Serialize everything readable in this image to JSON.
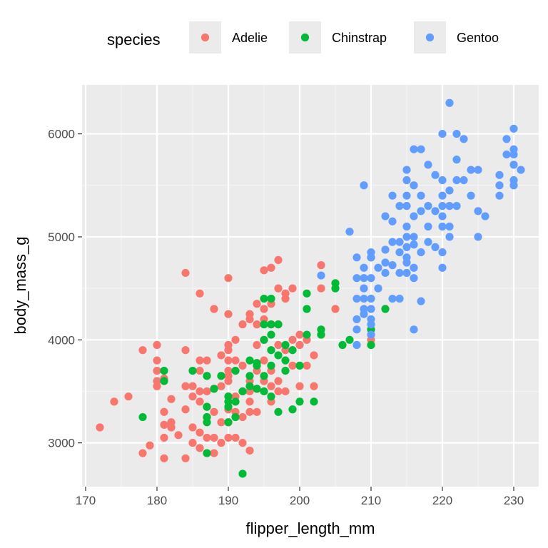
{
  "chart_data": {
    "type": "scatter",
    "xlabel": "flipper_length_mm",
    "ylabel": "body_mass_g",
    "xlim": [
      169.5,
      233.5
    ],
    "ylim": [
      2575,
      6475
    ],
    "x_ticks": [
      170,
      180,
      190,
      200,
      210,
      220,
      230
    ],
    "y_ticks": [
      3000,
      4000,
      5000,
      6000
    ],
    "x_tick_labels": [
      "170",
      "180",
      "190",
      "200",
      "210",
      "220",
      "230"
    ],
    "y_tick_labels": [
      "3000",
      "4000",
      "5000",
      "6000"
    ],
    "grid": true,
    "legend": {
      "title": "species",
      "position": "top",
      "entries": [
        "Adelie",
        "Chinstrap",
        "Gentoo"
      ]
    },
    "series": [
      {
        "name": "Adelie",
        "color": "#F8766D",
        "points": [
          [
            172,
            3150
          ],
          [
            174,
            3400
          ],
          [
            176,
            3450
          ],
          [
            178,
            3900
          ],
          [
            178,
            2900
          ],
          [
            179,
            2975
          ],
          [
            180,
            3950
          ],
          [
            180,
            3800
          ],
          [
            180,
            3600
          ],
          [
            180,
            3550
          ],
          [
            180,
            3700
          ],
          [
            181,
            3625
          ],
          [
            181,
            3300
          ],
          [
            181,
            3175
          ],
          [
            181,
            3050
          ],
          [
            181,
            2850
          ],
          [
            182,
            3425
          ],
          [
            182,
            3200
          ],
          [
            182,
            3150
          ],
          [
            183,
            3075
          ],
          [
            184,
            4650
          ],
          [
            184,
            3900
          ],
          [
            184,
            3550
          ],
          [
            184,
            3325
          ],
          [
            184,
            2850
          ],
          [
            185,
            3550
          ],
          [
            185,
            3450
          ],
          [
            185,
            3150
          ],
          [
            185,
            3000
          ],
          [
            186,
            4450
          ],
          [
            186,
            3800
          ],
          [
            186,
            3700
          ],
          [
            186,
            3500
          ],
          [
            186,
            3400
          ],
          [
            186,
            3100
          ],
          [
            186,
            2950
          ],
          [
            187,
            3800
          ],
          [
            187,
            3650
          ],
          [
            187,
            3500
          ],
          [
            187,
            3350
          ],
          [
            187,
            3250
          ],
          [
            187,
            3050
          ],
          [
            187,
            2900
          ],
          [
            188,
            4300
          ],
          [
            188,
            3525
          ],
          [
            188,
            3300
          ],
          [
            188,
            3050
          ],
          [
            188,
            2900
          ],
          [
            189,
            3850
          ],
          [
            189,
            3650
          ],
          [
            189,
            3550
          ],
          [
            189,
            3200
          ],
          [
            189,
            3000
          ],
          [
            190,
            4600
          ],
          [
            190,
            4250
          ],
          [
            190,
            3950
          ],
          [
            190,
            3900
          ],
          [
            190,
            3800
          ],
          [
            190,
            3700
          ],
          [
            190,
            3650
          ],
          [
            190,
            3600
          ],
          [
            190,
            3450
          ],
          [
            190,
            3325
          ],
          [
            190,
            3200
          ],
          [
            190,
            3050
          ],
          [
            191,
            4000
          ],
          [
            191,
            3800
          ],
          [
            191,
            3700
          ],
          [
            191,
            3450
          ],
          [
            191,
            3300
          ],
          [
            191,
            3050
          ],
          [
            192,
            4150
          ],
          [
            192,
            3750
          ],
          [
            192,
            3500
          ],
          [
            192,
            3250
          ],
          [
            192,
            3000
          ],
          [
            193,
            4250
          ],
          [
            193,
            4200
          ],
          [
            193,
            3600
          ],
          [
            193,
            3500
          ],
          [
            193,
            3400
          ],
          [
            193,
            3300
          ],
          [
            193,
            2925
          ],
          [
            194,
            4350
          ],
          [
            194,
            4150
          ],
          [
            194,
            3950
          ],
          [
            194,
            3700
          ],
          [
            194,
            3525
          ],
          [
            194,
            3300
          ],
          [
            195,
            4675
          ],
          [
            195,
            4300
          ],
          [
            195,
            4200
          ],
          [
            195,
            4000
          ],
          [
            195,
            3800
          ],
          [
            195,
            3600
          ],
          [
            196,
            4700
          ],
          [
            196,
            4350
          ],
          [
            196,
            4150
          ],
          [
            196,
            3700
          ],
          [
            196,
            3550
          ],
          [
            196,
            3400
          ],
          [
            197,
            4775
          ],
          [
            197,
            4500
          ],
          [
            197,
            4150
          ],
          [
            197,
            3950
          ],
          [
            197,
            3600
          ],
          [
            197,
            3500
          ],
          [
            198,
            4450
          ],
          [
            198,
            4400
          ],
          [
            198,
            3900
          ],
          [
            198,
            3500
          ],
          [
            199,
            4500
          ],
          [
            199,
            4000
          ],
          [
            199,
            3750
          ],
          [
            200,
            4050
          ],
          [
            200,
            3950
          ],
          [
            200,
            3550
          ],
          [
            201,
            4000
          ],
          [
            201,
            3750
          ],
          [
            202,
            3850
          ],
          [
            202,
            3550
          ],
          [
            203,
            4725
          ],
          [
            203,
            4500
          ],
          [
            205,
            4300
          ],
          [
            210,
            4000
          ]
        ]
      },
      {
        "name": "Chinstrap",
        "color": "#00BA38",
        "points": [
          [
            178,
            3250
          ],
          [
            181,
            3700
          ],
          [
            181,
            3600
          ],
          [
            185,
            3700
          ],
          [
            187,
            3650
          ],
          [
            187,
            3350
          ],
          [
            187,
            3250
          ],
          [
            187,
            3200
          ],
          [
            187,
            2900
          ],
          [
            188,
            3525
          ],
          [
            189,
            3650
          ],
          [
            190,
            3450
          ],
          [
            190,
            3400
          ],
          [
            190,
            3350
          ],
          [
            190,
            3200
          ],
          [
            191,
            3700
          ],
          [
            191,
            3400
          ],
          [
            191,
            3250
          ],
          [
            192,
            2700
          ],
          [
            192,
            3500
          ],
          [
            193,
            3800
          ],
          [
            193,
            3650
          ],
          [
            193,
            3550
          ],
          [
            194,
            3775
          ],
          [
            194,
            3750
          ],
          [
            194,
            3525
          ],
          [
            195,
            4400
          ],
          [
            195,
            3650
          ],
          [
            195,
            4150
          ],
          [
            195,
            4000
          ],
          [
            195,
            3500
          ],
          [
            196,
            4400
          ],
          [
            196,
            4150
          ],
          [
            196,
            4050
          ],
          [
            196,
            3900
          ],
          [
            196,
            3750
          ],
          [
            196,
            3450
          ],
          [
            197,
            4150
          ],
          [
            197,
            3850
          ],
          [
            197,
            3300
          ],
          [
            198,
            3950
          ],
          [
            198,
            3800
          ],
          [
            198,
            3700
          ],
          [
            199,
            3900
          ],
          [
            199,
            3325
          ],
          [
            200,
            3750
          ],
          [
            200,
            3400
          ],
          [
            201,
            4450
          ],
          [
            201,
            4300
          ],
          [
            201,
            4050
          ],
          [
            202,
            3400
          ],
          [
            203,
            4100
          ],
          [
            203,
            4050
          ],
          [
            205,
            4550
          ],
          [
            205,
            4500
          ],
          [
            206,
            3950
          ],
          [
            207,
            4000
          ],
          [
            210,
            4800
          ],
          [
            210,
            4100
          ],
          [
            210,
            3950
          ],
          [
            212,
            4300
          ]
        ]
      },
      {
        "name": "Gentoo",
        "color": "#619CFF",
        "points": [
          [
            203,
            4625
          ],
          [
            207,
            5050
          ],
          [
            208,
            4800
          ],
          [
            208,
            4600
          ],
          [
            208,
            4400
          ],
          [
            208,
            4200
          ],
          [
            208,
            4100
          ],
          [
            208,
            3950
          ],
          [
            209,
            5500
          ],
          [
            209,
            4700
          ],
          [
            209,
            4600
          ],
          [
            209,
            4500
          ],
          [
            209,
            4400
          ],
          [
            209,
            4300
          ],
          [
            209,
            4250
          ],
          [
            210,
            4850
          ],
          [
            210,
            4800
          ],
          [
            210,
            4600
          ],
          [
            210,
            4400
          ],
          [
            210,
            4300
          ],
          [
            210,
            4200
          ],
          [
            210,
            4150
          ],
          [
            210,
            4050
          ],
          [
            211,
            4700
          ],
          [
            211,
            4500
          ],
          [
            212,
            5200
          ],
          [
            212,
            4875
          ],
          [
            212,
            4650
          ],
          [
            212,
            4750
          ],
          [
            213,
            5400
          ],
          [
            213,
            5150
          ],
          [
            213,
            4950
          ],
          [
            213,
            4725
          ],
          [
            213,
            4400
          ],
          [
            214,
            5300
          ],
          [
            214,
            4950
          ],
          [
            214,
            4850
          ],
          [
            214,
            4650
          ],
          [
            214,
            4400
          ],
          [
            215,
            5650
          ],
          [
            215,
            5550
          ],
          [
            215,
            5400
          ],
          [
            215,
            5300
          ],
          [
            215,
            5100
          ],
          [
            215,
            5000
          ],
          [
            215,
            4900
          ],
          [
            215,
            4800
          ],
          [
            215,
            4750
          ],
          [
            215,
            4650
          ],
          [
            216,
            5850
          ],
          [
            216,
            5500
          ],
          [
            216,
            5200
          ],
          [
            216,
            5000
          ],
          [
            216,
            4925
          ],
          [
            216,
            4700
          ],
          [
            216,
            4600
          ],
          [
            216,
            4100
          ],
          [
            217,
            5850
          ],
          [
            217,
            5400
          ],
          [
            217,
            5250
          ],
          [
            217,
            4850
          ],
          [
            217,
            4375
          ],
          [
            218,
            5700
          ],
          [
            218,
            5300
          ],
          [
            218,
            5100
          ],
          [
            218,
            4950
          ],
          [
            219,
            5600
          ],
          [
            219,
            5250
          ],
          [
            219,
            4900
          ],
          [
            220,
            6000
          ],
          [
            220,
            5550
          ],
          [
            220,
            5400
          ],
          [
            220,
            5300
          ],
          [
            220,
            5200
          ],
          [
            220,
            5100
          ],
          [
            220,
            4850
          ],
          [
            220,
            4700
          ],
          [
            221,
            6300
          ],
          [
            221,
            5450
          ],
          [
            221,
            5300
          ],
          [
            221,
            5100
          ],
          [
            221,
            5000
          ],
          [
            222,
            6000
          ],
          [
            222,
            5750
          ],
          [
            222,
            5550
          ],
          [
            222,
            5300
          ],
          [
            223,
            5950
          ],
          [
            223,
            5550
          ],
          [
            224,
            5650
          ],
          [
            224,
            5400
          ],
          [
            225,
            5650
          ],
          [
            225,
            5250
          ],
          [
            225,
            5000
          ],
          [
            226,
            5200
          ],
          [
            228,
            5600
          ],
          [
            228,
            5500
          ],
          [
            228,
            5400
          ],
          [
            229,
            5950
          ],
          [
            229,
            5800
          ],
          [
            230,
            6050
          ],
          [
            230,
            5850
          ],
          [
            230,
            5800
          ],
          [
            230,
            5700
          ],
          [
            230,
            5550
          ],
          [
            230,
            5500
          ],
          [
            231,
            5650
          ]
        ]
      }
    ]
  }
}
